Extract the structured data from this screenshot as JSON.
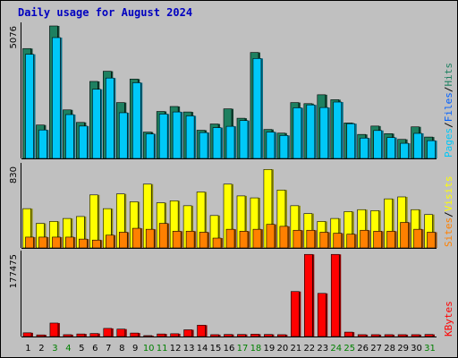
{
  "title": "Daily usage for August 2024",
  "chart_data": [
    {
      "type": "bar",
      "panel": "pages-files-hits",
      "max_label": "5076",
      "ylim": [
        0,
        5076
      ],
      "legend": [
        "Pages",
        "/",
        "Files",
        "/",
        "Hits"
      ],
      "categories": [
        "1",
        "2",
        "3",
        "4",
        "5",
        "6",
        "7",
        "8",
        "9",
        "10",
        "11",
        "12",
        "13",
        "14",
        "15",
        "16",
        "17",
        "18",
        "19",
        "20",
        "21",
        "22",
        "23",
        "24",
        "25",
        "26",
        "27",
        "28",
        "29",
        "30",
        "31"
      ],
      "weekend_days": [
        "3",
        "4",
        "10",
        "11",
        "17",
        "18",
        "24",
        "25",
        "31"
      ],
      "series": [
        {
          "name": "Hits",
          "values": [
            4210,
            1280,
            5076,
            1860,
            1380,
            2950,
            3340,
            2140,
            3040,
            1010,
            1800,
            1990,
            1780,
            1080,
            1320,
            1900,
            1540,
            4060,
            1110,
            970,
            2140,
            2100,
            2440,
            2250,
            1360,
            920,
            1240,
            950,
            730,
            1210,
            820
          ]
        },
        {
          "name": "Files",
          "values": [
            3990,
            1090,
            4630,
            1680,
            1240,
            2650,
            3080,
            1750,
            2900,
            940,
            1700,
            1780,
            1630,
            990,
            1180,
            1230,
            1450,
            3830,
            1010,
            880,
            1940,
            2050,
            1950,
            2160,
            1330,
            780,
            1070,
            800,
            580,
            960,
            680
          ]
        }
      ],
      "colors": {
        "Hits": "#1e8060",
        "Files": "#00c8f8"
      }
    },
    {
      "type": "bar",
      "panel": "visits-sites",
      "max_label": "830",
      "ylim": [
        0,
        830
      ],
      "legend": [
        "Sites",
        "/",
        "Visits"
      ],
      "series": [
        {
          "name": "Visits",
          "values": [
            400,
            250,
            270,
            300,
            320,
            540,
            400,
            550,
            470,
            650,
            460,
            480,
            430,
            570,
            330,
            650,
            530,
            510,
            800,
            590,
            430,
            350,
            270,
            300,
            370,
            390,
            380,
            500,
            520,
            390,
            340
          ]
        },
        {
          "name": "Sites",
          "values": [
            110,
            110,
            110,
            110,
            90,
            80,
            130,
            160,
            200,
            190,
            250,
            170,
            170,
            160,
            100,
            190,
            170,
            190,
            240,
            220,
            180,
            180,
            160,
            150,
            140,
            180,
            170,
            170,
            260,
            190,
            160
          ]
        }
      ],
      "colors": {
        "Visits": "#ffff00",
        "Sites": "#ff8000"
      }
    },
    {
      "type": "bar",
      "panel": "kbytes",
      "max_label": "177475",
      "ylim": [
        0,
        177475
      ],
      "legend": [
        "KBytes"
      ],
      "series": [
        {
          "name": "KBytes",
          "values": [
            8000,
            3500,
            29000,
            4000,
            5500,
            6500,
            17500,
            16000,
            7500,
            2000,
            5500,
            6000,
            14500,
            24500,
            4000,
            4500,
            4500,
            5000,
            4500,
            4000,
            97000,
            177000,
            93000,
            177000,
            9500,
            4000,
            4000,
            4000,
            4000,
            4000,
            4500
          ]
        }
      ],
      "colors": {
        "KBytes": "#ff0000"
      }
    }
  ],
  "colors": {
    "background": "#c0c0c0",
    "title": "#0000c0",
    "weekday_label": "#000000",
    "weekend_label": "#008000",
    "separator": "#000000"
  }
}
